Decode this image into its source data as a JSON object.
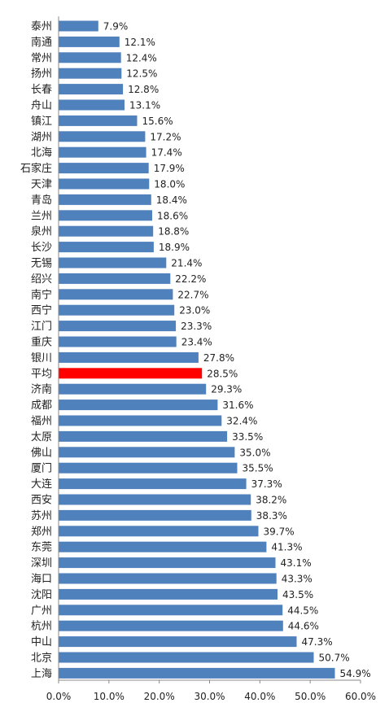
{
  "chart_data": {
    "type": "bar",
    "orientation": "horizontal",
    "categories": [
      "泰州",
      "南通",
      "常州",
      "扬州",
      "长春",
      "舟山",
      "镇江",
      "湖州",
      "北海",
      "石家庄",
      "天津",
      "青岛",
      "兰州",
      "泉州",
      "长沙",
      "无锡",
      "绍兴",
      "南宁",
      "西宁",
      "江门",
      "重庆",
      "银川",
      "平均",
      "济南",
      "成都",
      "福州",
      "太原",
      "佛山",
      "厦门",
      "大连",
      "西安",
      "苏州",
      "郑州",
      "东莞",
      "深圳",
      "海口",
      "沈阳",
      "广州",
      "杭州",
      "中山",
      "北京",
      "上海"
    ],
    "values": [
      7.9,
      12.1,
      12.4,
      12.5,
      12.8,
      13.1,
      15.6,
      17.2,
      17.4,
      17.9,
      18.0,
      18.4,
      18.6,
      18.8,
      18.9,
      21.4,
      22.2,
      22.7,
      23.0,
      23.3,
      23.4,
      27.8,
      28.5,
      29.3,
      31.6,
      32.4,
      33.5,
      35.0,
      35.5,
      37.3,
      38.2,
      38.3,
      39.7,
      41.3,
      43.1,
      43.3,
      43.5,
      44.5,
      44.6,
      47.3,
      50.7,
      54.9
    ],
    "value_labels": [
      "7.9%",
      "12.1%",
      "12.4%",
      "12.5%",
      "12.8%",
      "13.1%",
      "15.6%",
      "17.2%",
      "17.4%",
      "17.9%",
      "18.0%",
      "18.4%",
      "18.6%",
      "18.8%",
      "18.9%",
      "21.4%",
      "22.2%",
      "22.7%",
      "23.0%",
      "23.3%",
      "23.4%",
      "27.8%",
      "28.5%",
      "29.3%",
      "31.6%",
      "32.4%",
      "33.5%",
      "35.0%",
      "35.5%",
      "37.3%",
      "38.2%",
      "38.3%",
      "39.7%",
      "41.3%",
      "43.1%",
      "43.3%",
      "43.5%",
      "44.5%",
      "44.6%",
      "47.3%",
      "50.7%",
      "54.9%"
    ],
    "highlight_category": "平均",
    "colors": {
      "bar": "#4f81bd",
      "highlight": "#ff0000",
      "axis": "#888888"
    },
    "xlim": [
      0,
      60
    ],
    "xticks": [
      0,
      10,
      20,
      30,
      40,
      50,
      60
    ],
    "xtick_labels": [
      "0.0%",
      "10.0%",
      "20.0%",
      "30.0%",
      "40.0%",
      "50.0%",
      "60.0%"
    ],
    "title": "",
    "xlabel": "",
    "ylabel": "",
    "grid": false,
    "legend": "none"
  }
}
